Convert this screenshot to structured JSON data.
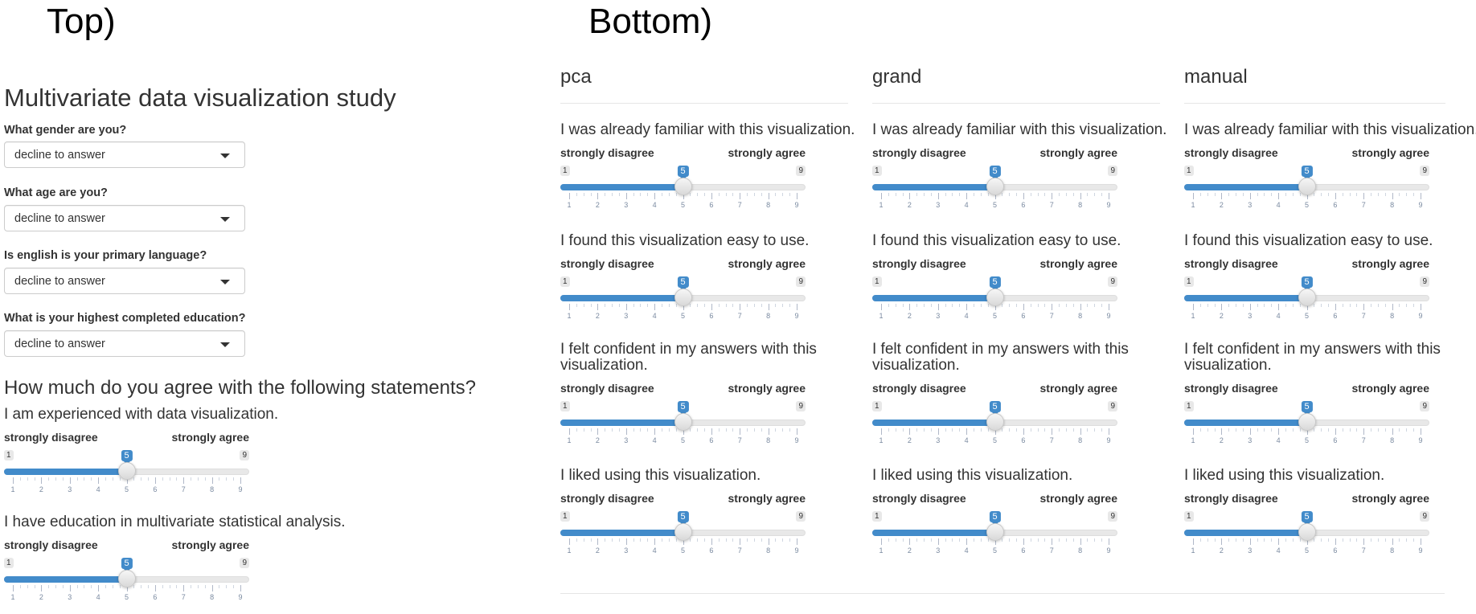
{
  "panels": {
    "top_label": "Top)",
    "bottom_label": "Bottom)"
  },
  "study_title": "Multivariate data visualization study",
  "demographics": [
    {
      "label": "What gender are you?",
      "value": "decline to answer"
    },
    {
      "label": "What age are you?",
      "value": "decline to answer"
    },
    {
      "label": "Is english is your primary language?",
      "value": "decline to answer"
    },
    {
      "label": "What is your highest completed education?",
      "value": "decline to answer"
    }
  ],
  "agree_heading": "How much do you agree with the following statements?",
  "slider_common": {
    "left_label": "strongly disagree",
    "right_label": "strongly agree",
    "min": 1,
    "max": 9
  },
  "top_sliders": [
    {
      "question": "I am experienced with data visualization.",
      "value": 5
    },
    {
      "question": "I have education in multivariate statistical analysis.",
      "value": 5
    }
  ],
  "columns": [
    {
      "title": "pca",
      "questions": [
        {
          "question": "I was already familiar with this visualization.",
          "value": 5
        },
        {
          "question": "I found this visualization easy to use.",
          "value": 5
        },
        {
          "question": "I felt confident in my answers with this visualization.",
          "value": 5
        },
        {
          "question": "I liked using this visualization.",
          "value": 5
        }
      ]
    },
    {
      "title": "grand",
      "questions": [
        {
          "question": "I was already familiar with this visualization.",
          "value": 5
        },
        {
          "question": "I found this visualization easy to use.",
          "value": 5
        },
        {
          "question": "I felt confident in my answers with this visualization.",
          "value": 5
        },
        {
          "question": "I liked using this visualization.",
          "value": 5
        }
      ]
    },
    {
      "title": "manual",
      "questions": [
        {
          "question": "I was already familiar with this visualization.",
          "value": 5
        },
        {
          "question": "I found this visualization easy to use.",
          "value": 5
        },
        {
          "question": "I felt confident in my answers with this visualization.",
          "value": 5
        },
        {
          "question": "I liked using this visualization.",
          "value": 5
        }
      ]
    }
  ],
  "colors": {
    "accent": "#428bca",
    "text": "#333333",
    "track": "#e8e8e8"
  }
}
